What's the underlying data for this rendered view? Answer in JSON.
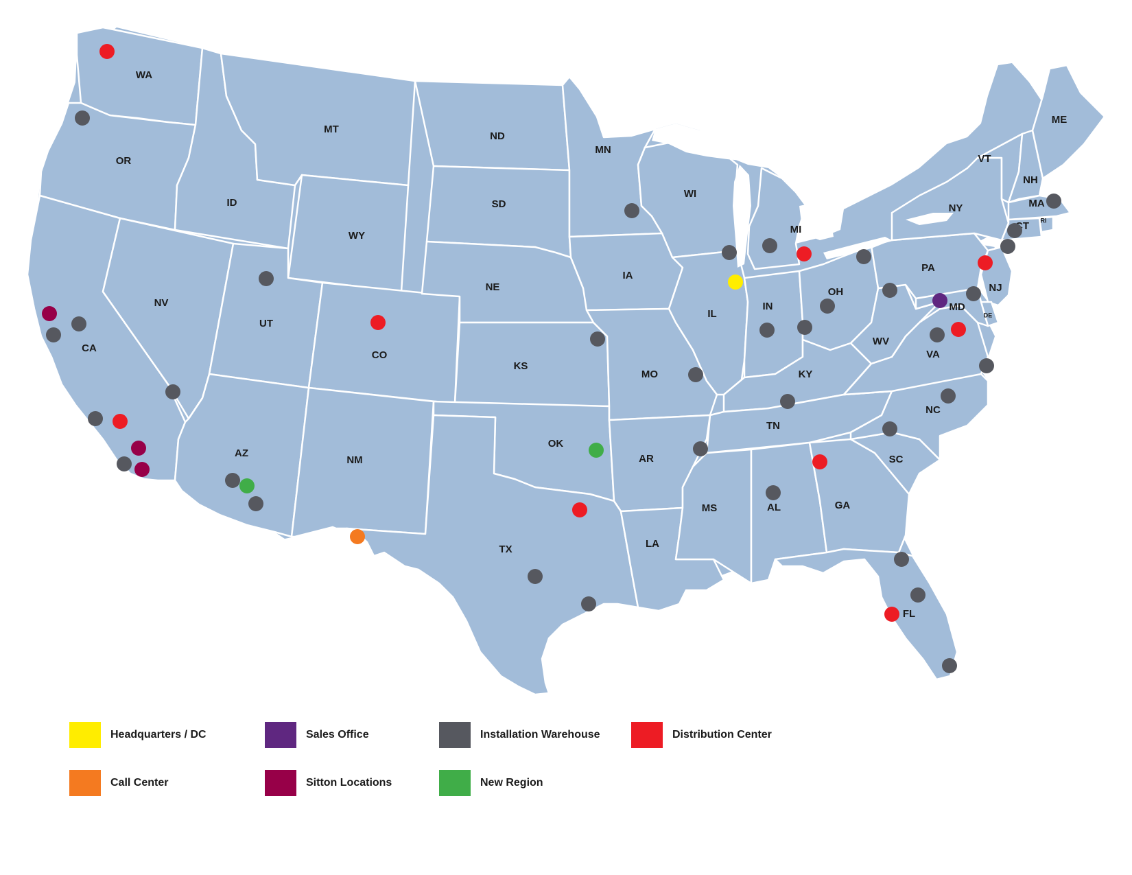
{
  "colors": {
    "land": "#a2bcd9",
    "border": "#ffffff",
    "headquarters": "#ffed00",
    "sales_office": "#5f2780",
    "installation_warehouse": "#56585f",
    "distribution_center": "#ed1c24",
    "call_center": "#f47a20",
    "sitton": "#970048",
    "new_region": "#40ad48"
  },
  "states": [
    {
      "abbr": "WA"
    },
    {
      "abbr": "OR"
    },
    {
      "abbr": "CA"
    },
    {
      "abbr": "ID"
    },
    {
      "abbr": "NV"
    },
    {
      "abbr": "MT"
    },
    {
      "abbr": "WY"
    },
    {
      "abbr": "UT"
    },
    {
      "abbr": "AZ"
    },
    {
      "abbr": "CO"
    },
    {
      "abbr": "NM"
    },
    {
      "abbr": "ND"
    },
    {
      "abbr": "SD"
    },
    {
      "abbr": "NE"
    },
    {
      "abbr": "KS"
    },
    {
      "abbr": "OK"
    },
    {
      "abbr": "TX"
    },
    {
      "abbr": "MN"
    },
    {
      "abbr": "IA"
    },
    {
      "abbr": "MO"
    },
    {
      "abbr": "AR"
    },
    {
      "abbr": "LA"
    },
    {
      "abbr": "WI"
    },
    {
      "abbr": "IL"
    },
    {
      "abbr": "MI"
    },
    {
      "abbr": "IN"
    },
    {
      "abbr": "OH"
    },
    {
      "abbr": "KY"
    },
    {
      "abbr": "TN"
    },
    {
      "abbr": "MS"
    },
    {
      "abbr": "AL"
    },
    {
      "abbr": "GA"
    },
    {
      "abbr": "FL"
    },
    {
      "abbr": "SC"
    },
    {
      "abbr": "NC"
    },
    {
      "abbr": "VA"
    },
    {
      "abbr": "WV"
    },
    {
      "abbr": "PA"
    },
    {
      "abbr": "NY"
    },
    {
      "abbr": "VT"
    },
    {
      "abbr": "NH"
    },
    {
      "abbr": "ME"
    },
    {
      "abbr": "MA"
    },
    {
      "abbr": "CT"
    },
    {
      "abbr": "RI"
    },
    {
      "abbr": "NJ"
    },
    {
      "abbr": "DE"
    },
    {
      "abbr": "MD"
    }
  ],
  "legend": {
    "headquarters": "Headquarters / DC",
    "sales_office": "Sales Office",
    "installation_warehouse": "Installation Warehouse",
    "distribution_center": "Distribution Center",
    "call_center": "Call Center",
    "sitton": "Sitton Locations",
    "new_region": "New Region"
  }
}
